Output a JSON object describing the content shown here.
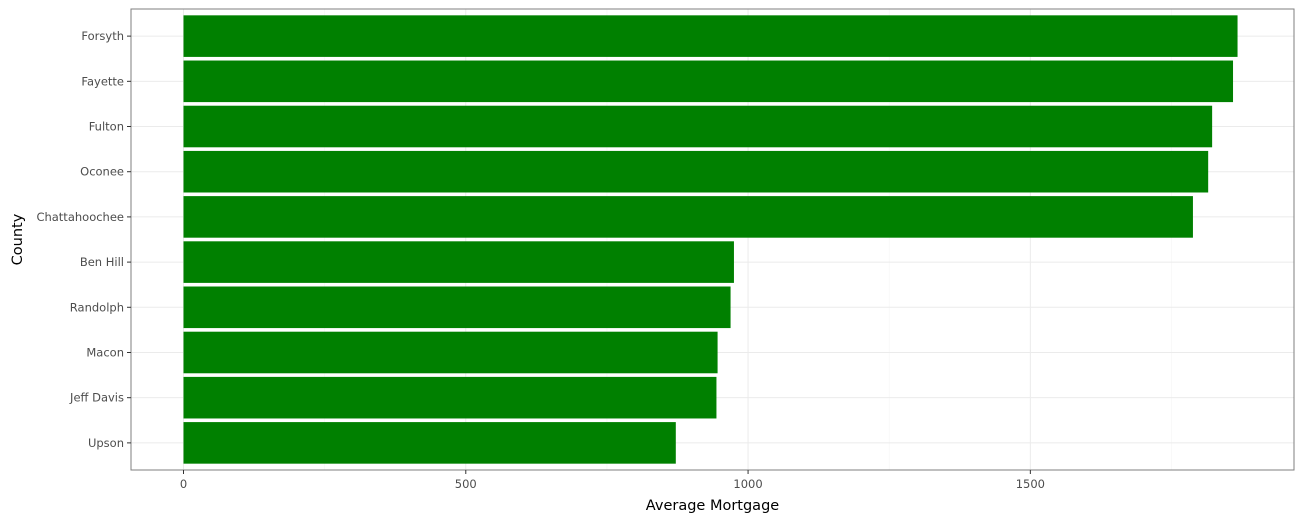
{
  "chart_data": {
    "type": "bar",
    "orientation": "horizontal",
    "categories": [
      "Forsyth",
      "Fayette",
      "Fulton",
      "Oconee",
      "Chattahoochee",
      "Ben Hill",
      "Randolph",
      "Macon",
      "Jeff Davis",
      "Upson"
    ],
    "values": [
      1867,
      1859,
      1822,
      1815,
      1788,
      975,
      969,
      946,
      944,
      872
    ],
    "xlabel": "Average Mortgage",
    "ylabel": "County",
    "xlim": [
      -93,
      1967
    ],
    "xticks": [
      0,
      500,
      1000,
      1500
    ],
    "grid": true,
    "bar_color": "#008000"
  }
}
